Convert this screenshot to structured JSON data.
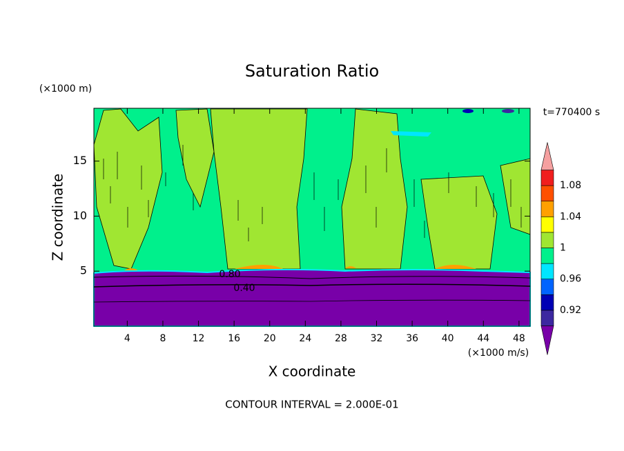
{
  "chart_data": {
    "type": "contour",
    "title": "Saturation Ratio",
    "x_label": "X coordinate",
    "y_label": "Z coordinate",
    "x_unit": "(×1000 m/s)",
    "y_unit": "(×1000 m)",
    "time_label": "t=770400 s",
    "footer": "CONTOUR INTERVAL = 2.000E-01",
    "xlim": [
      0.25,
      49.25
    ],
    "xticks": [
      4,
      8,
      12,
      16,
      20,
      24,
      28,
      32,
      36,
      40,
      44,
      48
    ],
    "ylim": [
      0,
      19.8
    ],
    "yticks": [
      5,
      10,
      15
    ],
    "contour_labels": [
      {
        "value": 0.8,
        "label": "0.80"
      },
      {
        "value": 0.4,
        "label": "0.40"
      }
    ],
    "colorbar": {
      "levels": [
        0.9,
        0.92,
        0.94,
        0.96,
        0.98,
        1,
        1.02,
        1.04,
        1.06,
        1.08,
        1.1
      ],
      "colors": [
        "#7800a8",
        "#3c28a0",
        "#0000b4",
        "#0064ff",
        "#00e6ff",
        "#00f08c",
        "#a0e632",
        "#ffff00",
        "#ffa000",
        "#ff5000",
        "#f01e1e",
        "#f5a0a0"
      ],
      "ticks": [
        0.92,
        0.96,
        1,
        1.04,
        1.08
      ]
    }
  }
}
